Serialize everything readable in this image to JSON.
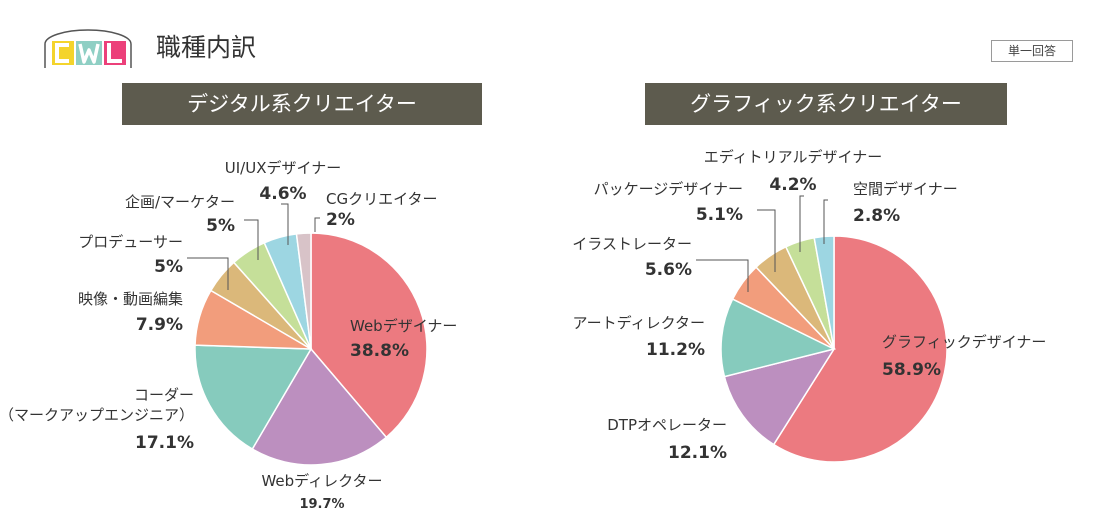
{
  "header": {
    "logo_text": "CWL",
    "title": "職種内訳",
    "answer_type": "単一回答"
  },
  "colors": {
    "header_bg": "#5d5b4e",
    "leader": "#555555"
  },
  "chart_data": [
    {
      "type": "pie",
      "title": "デジタル系クリエイター",
      "slices": [
        {
          "name": "Webデザイナー",
          "value": 38.8,
          "value_label": "38.8%",
          "color": "#ec7a80"
        },
        {
          "name": "Webディレクター",
          "value": 19.7,
          "value_label": "19.7%",
          "color": "#bc8fbf"
        },
        {
          "name_lines": [
            "コーダー",
            "（マークアップエンジニア）"
          ],
          "value": 17.1,
          "value_label": "17.1%",
          "color": "#86cbbd"
        },
        {
          "name": "映像・動画編集",
          "value": 7.9,
          "value_label": "7.9%",
          "color": "#f29d7c"
        },
        {
          "name": "プロデューサー",
          "value": 5,
          "value_label": "5%",
          "color": "#dbb87a"
        },
        {
          "name": "企画/マーケター",
          "value": 5,
          "value_label": "5%",
          "color": "#c5df99"
        },
        {
          "name": "UI/UXデザイナー",
          "value": 4.6,
          "value_label": "4.6%",
          "color": "#9dd6e2"
        },
        {
          "name": "CGクリエイター",
          "value": 2,
          "value_label": "2%",
          "color": "#d8c3c8"
        }
      ]
    },
    {
      "type": "pie",
      "title": "グラフィック系クリエイター",
      "slices": [
        {
          "name": "グラフィックデザイナー",
          "value": 58.9,
          "value_label": "58.9%",
          "color": "#ec7a80"
        },
        {
          "name": "DTPオペレーター",
          "value": 12.1,
          "value_label": "12.1%",
          "color": "#bc8fbf"
        },
        {
          "name": "アートディレクター",
          "value": 11.2,
          "value_label": "11.2%",
          "color": "#86cbbd"
        },
        {
          "name": "イラストレーター",
          "value": 5.6,
          "value_label": "5.6%",
          "color": "#f29d7c"
        },
        {
          "name": "パッケージデザイナー",
          "value": 5.1,
          "value_label": "5.1%",
          "color": "#dbb87a"
        },
        {
          "name": "エディトリアルデザイナー",
          "value": 4.2,
          "value_label": "4.2%",
          "color": "#c5df99"
        },
        {
          "name": "空間デザイナー",
          "value": 2.8,
          "value_label": "2.8%",
          "color": "#9dd6e2"
        }
      ]
    }
  ]
}
